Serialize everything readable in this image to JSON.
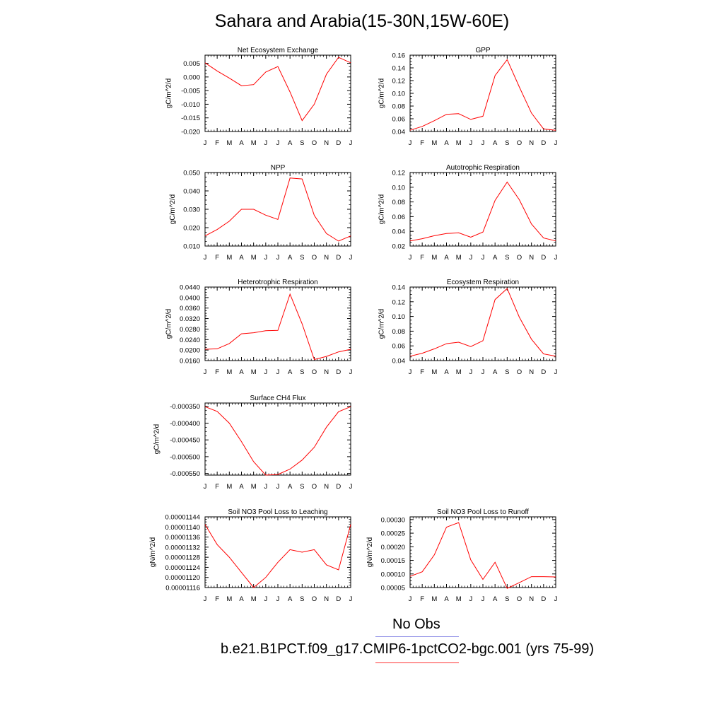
{
  "title": "Sahara and Arabia(15-30N,15W-60E)",
  "legend": [
    {
      "label": "No Obs",
      "color": "#8a8ae6"
    },
    {
      "label": "b.e21.B1PCT.f09_g17.CMIP6-1pctCO2-bgc.001 (yrs 75-99)",
      "color": "#ff3333"
    }
  ],
  "line_color": "#ff0000",
  "chart_data": [
    {
      "type": "line",
      "title": "Net Ecosystem Exchange",
      "ylabel": "gC/m^2/d",
      "xlabel": "",
      "categories": [
        "J",
        "F",
        "M",
        "A",
        "M",
        "J",
        "J",
        "A",
        "S",
        "O",
        "N",
        "D",
        "J"
      ],
      "ylim": [
        -0.02,
        0.008
      ],
      "yticks": [
        -0.02,
        -0.015,
        -0.01,
        -0.005,
        0.0,
        0.005
      ],
      "yticklabels": [
        "-0.020",
        "-0.015",
        "-0.010",
        "-0.005",
        "0.000",
        "0.005"
      ],
      "series": [
        {
          "values": [
            0.0052,
            0.0022,
            -0.0004,
            -0.0032,
            -0.0028,
            0.0018,
            0.0038,
            -0.0055,
            -0.016,
            -0.01,
            0.001,
            0.0072,
            0.0052
          ]
        }
      ]
    },
    {
      "type": "line",
      "title": "GPP",
      "ylabel": "gC/m^2/d",
      "xlabel": "",
      "categories": [
        "J",
        "F",
        "M",
        "A",
        "M",
        "J",
        "J",
        "A",
        "S",
        "O",
        "N",
        "D",
        "J"
      ],
      "ylim": [
        0.04,
        0.16
      ],
      "yticks": [
        0.04,
        0.06,
        0.08,
        0.1,
        0.12,
        0.14,
        0.16
      ],
      "yticklabels": [
        "0.04",
        "0.06",
        "0.08",
        "0.10",
        "0.12",
        "0.14",
        "0.16"
      ],
      "series": [
        {
          "values": [
            0.042,
            0.048,
            0.057,
            0.067,
            0.068,
            0.059,
            0.064,
            0.128,
            0.153,
            0.11,
            0.069,
            0.044,
            0.042
          ]
        }
      ]
    },
    {
      "type": "line",
      "title": "NPP",
      "ylabel": "gC/m^2/d",
      "xlabel": "",
      "categories": [
        "J",
        "F",
        "M",
        "A",
        "M",
        "J",
        "J",
        "A",
        "S",
        "O",
        "N",
        "D",
        "J"
      ],
      "ylim": [
        0.01,
        0.05
      ],
      "yticks": [
        0.01,
        0.02,
        0.03,
        0.04,
        0.05
      ],
      "yticklabels": [
        "0.010",
        "0.020",
        "0.030",
        "0.040",
        "0.050"
      ],
      "series": [
        {
          "values": [
            0.0155,
            0.019,
            0.0235,
            0.03,
            0.03,
            0.0268,
            0.0245,
            0.047,
            0.0465,
            0.0267,
            0.0168,
            0.0127,
            0.0155
          ]
        }
      ]
    },
    {
      "type": "line",
      "title": "Autotrophic Respiration",
      "ylabel": "gC/m^2/d",
      "xlabel": "",
      "categories": [
        "J",
        "F",
        "M",
        "A",
        "M",
        "J",
        "J",
        "A",
        "S",
        "O",
        "N",
        "D",
        "J"
      ],
      "ylim": [
        0.02,
        0.12
      ],
      "yticks": [
        0.02,
        0.04,
        0.06,
        0.08,
        0.1,
        0.12
      ],
      "yticklabels": [
        "0.02",
        "0.04",
        "0.06",
        "0.08",
        "0.10",
        "0.12"
      ],
      "series": [
        {
          "values": [
            0.027,
            0.03,
            0.034,
            0.037,
            0.038,
            0.032,
            0.039,
            0.082,
            0.107,
            0.083,
            0.05,
            0.031,
            0.027
          ]
        }
      ]
    },
    {
      "type": "line",
      "title": "Heterotrophic Respiration",
      "ylabel": "gC/m^2/d",
      "xlabel": "",
      "categories": [
        "J",
        "F",
        "M",
        "A",
        "M",
        "J",
        "J",
        "A",
        "S",
        "O",
        "N",
        "D",
        "J"
      ],
      "ylim": [
        0.016,
        0.044
      ],
      "yticks": [
        0.016,
        0.02,
        0.024,
        0.028,
        0.032,
        0.036,
        0.04,
        0.044
      ],
      "yticklabels": [
        "0.0160",
        "0.0200",
        "0.0240",
        "0.0280",
        "0.0320",
        "0.0360",
        "0.0400",
        "0.0440"
      ],
      "series": [
        {
          "values": [
            0.0203,
            0.0205,
            0.0225,
            0.0262,
            0.0266,
            0.0274,
            0.0275,
            0.0413,
            0.03,
            0.0164,
            0.0176,
            0.0193,
            0.0203
          ]
        }
      ]
    },
    {
      "type": "line",
      "title": "Ecosystem Respiration",
      "ylabel": "gC/m^2/d",
      "xlabel": "",
      "categories": [
        "J",
        "F",
        "M",
        "A",
        "M",
        "J",
        "J",
        "A",
        "S",
        "O",
        "N",
        "D",
        "J"
      ],
      "ylim": [
        0.04,
        0.14
      ],
      "yticks": [
        0.04,
        0.06,
        0.08,
        0.1,
        0.12,
        0.14
      ],
      "yticklabels": [
        "0.04",
        "0.06",
        "0.08",
        "0.10",
        "0.12",
        "0.14"
      ],
      "series": [
        {
          "values": [
            0.046,
            0.05,
            0.056,
            0.063,
            0.065,
            0.059,
            0.067,
            0.123,
            0.138,
            0.099,
            0.069,
            0.049,
            0.046
          ]
        }
      ]
    },
    {
      "type": "line",
      "title": "Surface CH4 Flux",
      "ylabel": "gC/m^2/d",
      "xlabel": "",
      "categories": [
        "J",
        "F",
        "M",
        "A",
        "M",
        "J",
        "J",
        "A",
        "S",
        "O",
        "N",
        "D",
        "J"
      ],
      "ylim": [
        -0.000555,
        -0.00034
      ],
      "yticks": [
        -0.00055,
        -0.0005,
        -0.00045,
        -0.0004,
        -0.00035
      ],
      "yticklabels": [
        "-0.000550",
        "-0.000500",
        "-0.000450",
        "-0.000400",
        "-0.000350"
      ],
      "series": [
        {
          "values": [
            -0.000351,
            -0.000365,
            -0.0004,
            -0.000455,
            -0.000515,
            -0.000555,
            -0.000553,
            -0.000537,
            -0.00051,
            -0.000472,
            -0.000412,
            -0.000366,
            -0.000351
          ]
        }
      ]
    },
    {
      "type": "line",
      "title": "Soil NO3 Pool Loss to Leaching",
      "ylabel": "gN/m^2/d",
      "xlabel": "",
      "categories": [
        "J",
        "F",
        "M",
        "A",
        "M",
        "J",
        "J",
        "A",
        "S",
        "O",
        "N",
        "D",
        "J"
      ],
      "ylim": [
        1.116e-05,
        1.144e-05
      ],
      "yticks": [
        1.116e-05,
        1.12e-05,
        1.124e-05,
        1.128e-05,
        1.132e-05,
        1.136e-05,
        1.14e-05,
        1.144e-05
      ],
      "yticklabels": [
        "0.00001116",
        "0.00001120",
        "0.00001124",
        "0.00001128",
        "0.00001132",
        "0.00001136",
        "0.00001140",
        "0.00001144"
      ],
      "series": [
        {
          "values": [
            1.141e-05,
            1.133e-05,
            1.128e-05,
            1.122e-05,
            1.116e-05,
            1.12e-05,
            1.126e-05,
            1.131e-05,
            1.13e-05,
            1.131e-05,
            1.125e-05,
            1.123e-05,
            1.141e-05
          ]
        }
      ]
    },
    {
      "type": "line",
      "title": "Soil NO3 Pool Loss to Runoff",
      "ylabel": "gN/m^2/d",
      "xlabel": "",
      "categories": [
        "J",
        "F",
        "M",
        "A",
        "M",
        "J",
        "J",
        "A",
        "S",
        "O",
        "N",
        "D",
        "J"
      ],
      "ylim": [
        5e-05,
        0.00031
      ],
      "yticks": [
        5e-05,
        0.0001,
        0.00015,
        0.0002,
        0.00025,
        0.0003
      ],
      "yticklabels": [
        "0.00005",
        "0.00010",
        "0.00015",
        "0.00020",
        "0.00025",
        "0.00030"
      ],
      "series": [
        {
          "values": [
            9.1e-05,
            0.000108,
            0.00017,
            0.000272,
            0.000289,
            0.000152,
            8e-05,
            0.000143,
            4.7e-05,
            6.8e-05,
            9e-05,
            9e-05,
            8.9e-05
          ]
        }
      ]
    }
  ]
}
